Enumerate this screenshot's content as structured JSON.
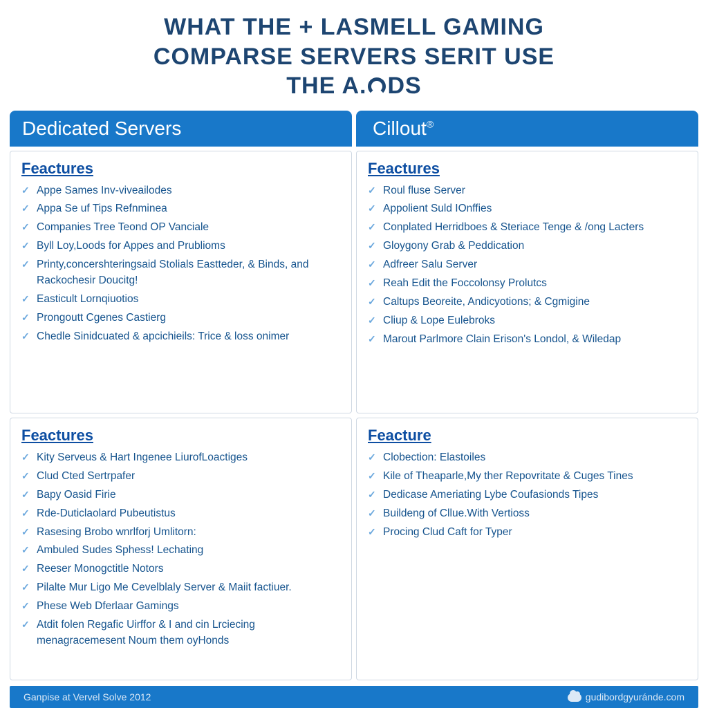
{
  "colors": {
    "title": "#1d4571",
    "header_bg": "#1878c9",
    "header_text": "#ffffff",
    "section_title": "#0d4ea2",
    "item_text": "#16548e",
    "check": "#6aa7dd",
    "panel_border": "#cfd8e3",
    "footer_text": "#dce9f6"
  },
  "typography": {
    "title_fontsize": 34,
    "header_fontsize": 28,
    "section_fontsize": 22,
    "item_fontsize": 15.5,
    "footer_fontsize": 14
  },
  "title": {
    "line1": "WHAT THE + LASMELL GAMING",
    "line2": "COMPARSE SERVERS SERIT USE",
    "line3_pre": "THE A.",
    "line3_post": "DS"
  },
  "columns": {
    "left": "Dedicated Servers",
    "right": "Cillout",
    "right_sup": "®"
  },
  "panels": {
    "tl": {
      "title": "Feactures",
      "items": [
        "Appe Sames Inv-viveailodes",
        "Appa Se uf Tips Refnminea",
        "Companies Tree Teond OP Vanciale",
        "Byll Loy,Loods for Appes and Prublioms",
        "Printy,concershteringsaid Stolials Eastteder, & Binds, and Rackochesir Doucitg!",
        "Easticult Lornqiuotios",
        "Prongoutt Cgenes Castierg",
        "Chedle Sinidcuated & apcichieils: Trice & loss onimer"
      ]
    },
    "tr": {
      "title": "Feactures",
      "items": [
        "Roul fluse Server",
        "Appolient Suld IOnffies",
        "Conplated Herridboes & Steriace Tenge & /ong Lacters",
        "Gloygony Grab & Peddication",
        "Adfreer Salu Server",
        "Reah Edit the Foccolonsy Prolutcs",
        "Caltups Beoreite, Andicyotions; & Cgmigine",
        "Cliup & Lope Eulebroks",
        "Marout Parlmore Clain Erison's Londol, & Wiledap"
      ]
    },
    "bl": {
      "title": "Feactures",
      "items": [
        "Kity Serveus & Hart Ingenee LiurofLoactiges",
        "Clud Cted Sertrpafer",
        "Bapy Oasid Firie",
        "Rde-Duticlaolard Pubeutistus",
        "Rasesing Brobo wnrlforj Umlitorn:",
        "Ambuled Sudes Sphess! Lechating",
        "Reeser Monogctitle Notors",
        "Pilalte Mur Ligo Me Cevelblaly Server & Maiit factiuer.",
        "Phese Web Dferlaar Gamings",
        "Atdit folen Regafic Uirffor & I and cin Lrciecing menagracemesent Noum them oyHonds"
      ]
    },
    "br": {
      "title": "Feacture",
      "items": [
        "Clobection: Elastoiles",
        "Kile of Theaparle,My ther Repovritate & Cuges Tines",
        "Dedicase Ameriating Lybe Coufasionds Tipes",
        "Buildeng of Cllue.With Vertioss",
        "Procing Clud Caft for Typer"
      ]
    }
  },
  "footer": {
    "left": "Ganpise at Vervel Solve 2012",
    "right": "gudibordgyuránde.com"
  }
}
